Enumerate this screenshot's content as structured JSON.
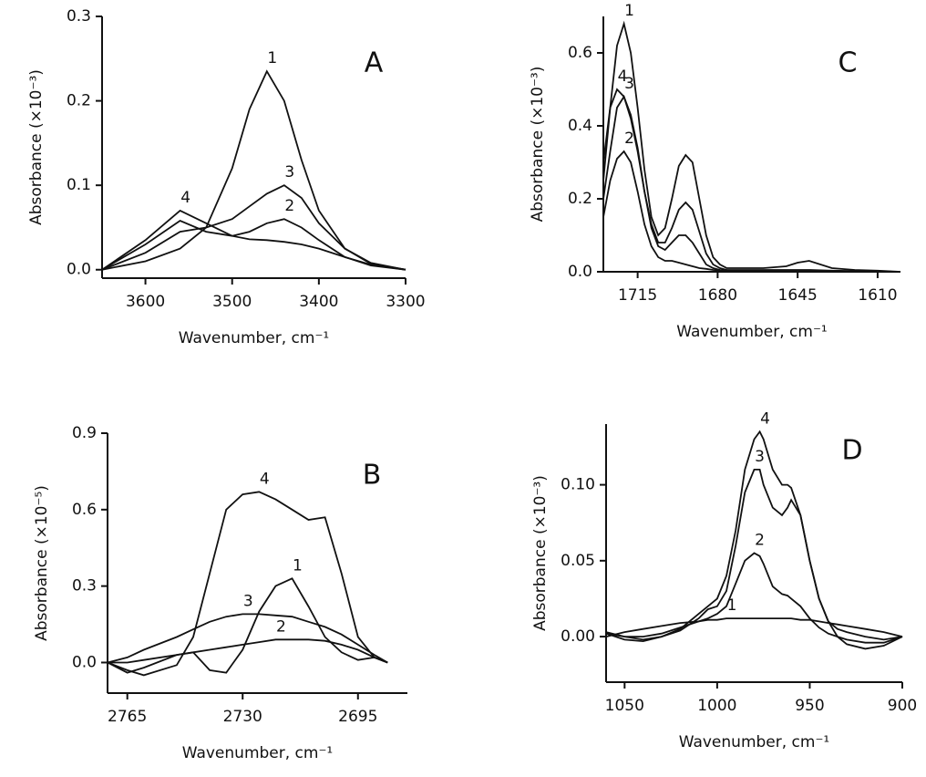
{
  "chart_data": [
    {
      "type": "line",
      "title": "A",
      "x_label": "Wavenumber, cm⁻¹",
      "y_label": "Absorbance (×10⁻³)",
      "xlim": [
        3650,
        3300
      ],
      "ylim": [
        -0.01,
        0.3
      ],
      "xticks": [
        3600,
        3500,
        3400,
        3300
      ],
      "yticks": [
        {
          "value": 0,
          "label": "0.0"
        },
        0.1,
        0.2,
        0.3
      ],
      "x": [
        3650,
        3600,
        3560,
        3530,
        3500,
        3480,
        3460,
        3440,
        3420,
        3400,
        3370,
        3340,
        3300
      ],
      "series": [
        {
          "name": "1",
          "color": "#111111",
          "values": [
            0,
            0.01,
            0.025,
            0.05,
            0.12,
            0.19,
            0.235,
            0.2,
            0.13,
            0.07,
            0.025,
            0.007,
            0
          ]
        },
        {
          "name": "2",
          "color": "#111111",
          "values": [
            0,
            0.03,
            0.058,
            0.045,
            0.04,
            0.045,
            0.055,
            0.06,
            0.05,
            0.035,
            0.015,
            0.005,
            0
          ]
        },
        {
          "name": "3",
          "color": "#111111",
          "values": [
            0,
            0.02,
            0.045,
            0.05,
            0.06,
            0.075,
            0.09,
            0.1,
            0.085,
            0.055,
            0.025,
            0.008,
            0
          ]
        },
        {
          "name": "4",
          "color": "#111111",
          "values": [
            0,
            0.035,
            0.07,
            0.055,
            0.04,
            0.036,
            0.035,
            0.033,
            0.03,
            0.025,
            0.015,
            0.006,
            0
          ]
        }
      ]
    },
    {
      "type": "line",
      "title": "B",
      "x_label": "Wavenumber, cm⁻¹",
      "y_label": "Absorbance (×10⁻⁵)",
      "xlim": [
        2771,
        2680
      ],
      "ylim": [
        -0.12,
        0.9
      ],
      "xticks": [
        2765,
        2730,
        2695
      ],
      "yticks": [
        {
          "value": 0,
          "label": "0.0"
        },
        0.3,
        0.6,
        0.9
      ],
      "x": [
        2771,
        2765,
        2760,
        2750,
        2745,
        2740,
        2735,
        2730,
        2725,
        2720,
        2715,
        2710,
        2705,
        2700,
        2695,
        2690,
        2686
      ],
      "series": [
        {
          "name": "1",
          "color": "#111111",
          "values": [
            0,
            -0.04,
            -0.02,
            0.03,
            0.04,
            -0.03,
            -0.04,
            0.05,
            0.2,
            0.3,
            0.33,
            0.22,
            0.1,
            0.04,
            0.01,
            0.02,
            0
          ]
        },
        {
          "name": "2",
          "color": "#111111",
          "values": [
            0,
            0,
            0.01,
            0.03,
            0.04,
            0.05,
            0.06,
            0.07,
            0.08,
            0.09,
            0.09,
            0.09,
            0.085,
            0.07,
            0.05,
            0.02,
            0
          ]
        },
        {
          "name": "3",
          "color": "#111111",
          "values": [
            0,
            0.02,
            0.05,
            0.1,
            0.13,
            0.16,
            0.18,
            0.19,
            0.19,
            0.185,
            0.18,
            0.16,
            0.14,
            0.11,
            0.07,
            0.03,
            0
          ]
        },
        {
          "name": "4",
          "color": "#111111",
          "values": [
            0,
            -0.03,
            -0.05,
            -0.01,
            0.1,
            0.35,
            0.6,
            0.66,
            0.67,
            0.64,
            0.6,
            0.56,
            0.57,
            0.35,
            0.1,
            0.02,
            0
          ]
        }
      ]
    },
    {
      "type": "line",
      "title": "C",
      "x_label": "Wavenumber, cm⁻¹",
      "y_label": "Absorbance (×10⁻³)",
      "xlim": [
        1730,
        1600
      ],
      "ylim": [
        0,
        0.7
      ],
      "xticks": [
        1715,
        1680,
        1645,
        1610
      ],
      "yticks": [
        {
          "value": 0,
          "label": "0.0"
        },
        0.2,
        0.4,
        0.6
      ],
      "x": [
        1730,
        1727,
        1724,
        1721,
        1718,
        1715,
        1712,
        1709,
        1706,
        1703,
        1700,
        1697,
        1694,
        1691,
        1688,
        1685,
        1682,
        1679,
        1676,
        1670,
        1660,
        1650,
        1645,
        1640,
        1630,
        1620,
        1610,
        1600
      ],
      "series": [
        {
          "name": "1",
          "color": "#111111",
          "values": [
            0.25,
            0.45,
            0.62,
            0.68,
            0.6,
            0.45,
            0.28,
            0.15,
            0.1,
            0.12,
            0.2,
            0.29,
            0.32,
            0.3,
            0.2,
            0.1,
            0.04,
            0.02,
            0.01,
            0.01,
            0.01,
            0.015,
            0.025,
            0.03,
            0.01,
            0.005,
            0.003,
            0
          ]
        },
        {
          "name": "2",
          "color": "#111111",
          "values": [
            0.15,
            0.25,
            0.31,
            0.33,
            0.3,
            0.22,
            0.13,
            0.07,
            0.04,
            0.03,
            0.03,
            0.025,
            0.02,
            0.015,
            0.01,
            0.008,
            0.005,
            0.004,
            0.003,
            0.002,
            0.002,
            0.002,
            0.002,
            0.002,
            0.001,
            0.001,
            0.001,
            0
          ]
        },
        {
          "name": "3",
          "color": "#111111",
          "values": [
            0.2,
            0.33,
            0.45,
            0.48,
            0.43,
            0.34,
            0.22,
            0.12,
            0.07,
            0.06,
            0.08,
            0.1,
            0.1,
            0.08,
            0.05,
            0.02,
            0.01,
            0.005,
            0.004,
            0.003,
            0.003,
            0.003,
            0.003,
            0.003,
            0.002,
            0.001,
            0.001,
            0
          ]
        },
        {
          "name": "4",
          "color": "#111111",
          "values": [
            0.3,
            0.45,
            0.5,
            0.48,
            0.42,
            0.33,
            0.22,
            0.13,
            0.08,
            0.08,
            0.12,
            0.17,
            0.19,
            0.17,
            0.11,
            0.05,
            0.02,
            0.01,
            0.005,
            0.005,
            0.005,
            0.005,
            0.005,
            0.005,
            0.003,
            0.002,
            0.001,
            0
          ]
        }
      ]
    },
    {
      "type": "line",
      "title": "D",
      "x_label": "Wavenumber, cm⁻¹",
      "y_label": "Absorbance (×10⁻³)",
      "xlim": [
        1060,
        900
      ],
      "ylim": [
        -0.03,
        0.14
      ],
      "xticks": [
        1050,
        1000,
        950,
        900
      ],
      "yticks": [
        {
          "value": 0,
          "label": "0.00"
        },
        0.05,
        {
          "value": 0.1,
          "label": "0.10"
        }
      ],
      "x": [
        1060,
        1050,
        1040,
        1030,
        1020,
        1010,
        1005,
        1000,
        995,
        990,
        985,
        980,
        977,
        975,
        970,
        965,
        962,
        960,
        955,
        950,
        945,
        940,
        935,
        930,
        920,
        910,
        900
      ],
      "series": [
        {
          "name": "1",
          "color": "#111111",
          "values": [
            0,
            0.003,
            0.005,
            0.007,
            0.009,
            0.01,
            0.011,
            0.011,
            0.012,
            0.012,
            0.012,
            0.012,
            0.012,
            0.012,
            0.012,
            0.012,
            0.012,
            0.012,
            0.011,
            0.011,
            0.01,
            0.009,
            0.008,
            0.007,
            0.005,
            0.003,
            0
          ]
        },
        {
          "name": "2",
          "color": "#111111",
          "values": [
            0.002,
            0,
            0,
            0.002,
            0.006,
            0.01,
            0.012,
            0.015,
            0.02,
            0.035,
            0.05,
            0.055,
            0.053,
            0.048,
            0.033,
            0.028,
            0.027,
            0.025,
            0.02,
            0.012,
            0.006,
            0.002,
            0,
            -0.002,
            -0.004,
            -0.004,
            0
          ]
        },
        {
          "name": "3",
          "color": "#111111",
          "values": [
            0.003,
            0,
            -0.002,
            0,
            0.004,
            0.012,
            0.018,
            0.02,
            0.03,
            0.06,
            0.095,
            0.11,
            0.11,
            0.1,
            0.085,
            0.08,
            0.085,
            0.09,
            0.08,
            0.05,
            0.025,
            0.01,
            0,
            -0.005,
            -0.008,
            -0.006,
            0
          ]
        },
        {
          "name": "4",
          "color": "#111111",
          "values": [
            0.002,
            -0.002,
            -0.003,
            0,
            0.005,
            0.015,
            0.02,
            0.025,
            0.04,
            0.07,
            0.11,
            0.13,
            0.135,
            0.13,
            0.11,
            0.1,
            0.1,
            0.098,
            0.08,
            0.05,
            0.025,
            0.01,
            0.005,
            0.003,
            0,
            -0.002,
            0
          ]
        }
      ]
    }
  ]
}
